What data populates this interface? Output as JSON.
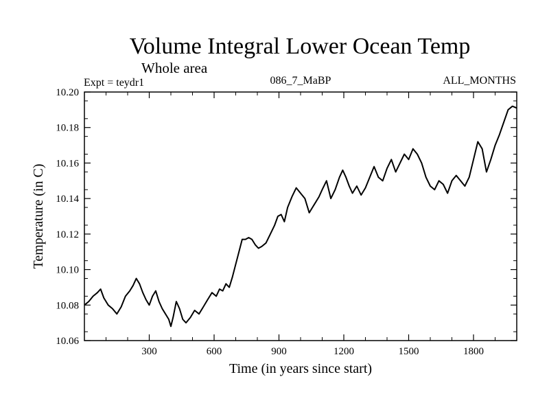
{
  "chart_data": {
    "type": "line",
    "title": "Volume Integral Lower Ocean Temp",
    "subtitle": "Whole area",
    "experiment": "Expt = teydr1",
    "run_label": "086_7_MaBP",
    "months_label": "ALL_MONTHS",
    "xlabel": "Time (in years since start)",
    "ylabel": "Temperature (in C)",
    "xlim": [
      0,
      2000
    ],
    "ylim": [
      10.06,
      10.2
    ],
    "x_ticks": [
      300,
      600,
      900,
      1200,
      1500,
      1800
    ],
    "y_ticks": [
      "10.06",
      "10.08",
      "10.10",
      "10.12",
      "10.14",
      "10.16",
      "10.18",
      "10.20"
    ],
    "grid": false,
    "series": [
      {
        "color": "#000000",
        "x": [
          0,
          20,
          40,
          60,
          75,
          90,
          110,
          130,
          150,
          170,
          190,
          210,
          225,
          240,
          255,
          270,
          285,
          300,
          315,
          330,
          345,
          360,
          375,
          390,
          400,
          410,
          425,
          440,
          455,
          470,
          490,
          510,
          530,
          550,
          570,
          590,
          610,
          625,
          640,
          655,
          670,
          685,
          700,
          715,
          730,
          745,
          760,
          775,
          790,
          805,
          820,
          840,
          860,
          880,
          895,
          910,
          925,
          940,
          960,
          980,
          1000,
          1020,
          1040,
          1055,
          1070,
          1085,
          1100,
          1120,
          1140,
          1160,
          1180,
          1195,
          1210,
          1225,
          1240,
          1260,
          1280,
          1300,
          1320,
          1340,
          1360,
          1380,
          1400,
          1420,
          1440,
          1460,
          1480,
          1500,
          1520,
          1540,
          1560,
          1580,
          1600,
          1620,
          1640,
          1660,
          1680,
          1700,
          1720,
          1740,
          1760,
          1780,
          1800,
          1820,
          1840,
          1860,
          1880,
          1900,
          1920,
          1940,
          1960,
          1980,
          2000
        ],
        "y": [
          10.08,
          10.082,
          10.085,
          10.087,
          10.089,
          10.084,
          10.08,
          10.078,
          10.075,
          10.079,
          10.085,
          10.088,
          10.091,
          10.095,
          10.092,
          10.087,
          10.083,
          10.08,
          10.085,
          10.088,
          10.082,
          10.078,
          10.075,
          10.072,
          10.068,
          10.073,
          10.082,
          10.078,
          10.072,
          10.07,
          10.073,
          10.077,
          10.075,
          10.079,
          10.083,
          10.087,
          10.085,
          10.089,
          10.088,
          10.092,
          10.09,
          10.096,
          10.103,
          10.11,
          10.117,
          10.117,
          10.118,
          10.117,
          10.114,
          10.112,
          10.113,
          10.115,
          10.12,
          10.125,
          10.13,
          10.131,
          10.127,
          10.135,
          10.141,
          10.146,
          10.143,
          10.14,
          10.132,
          10.135,
          10.138,
          10.141,
          10.145,
          10.15,
          10.14,
          10.145,
          10.152,
          10.156,
          10.152,
          10.147,
          10.143,
          10.147,
          10.142,
          10.146,
          10.152,
          10.158,
          10.152,
          10.15,
          10.157,
          10.162,
          10.155,
          10.16,
          10.165,
          10.162,
          10.168,
          10.165,
          10.16,
          10.152,
          10.147,
          10.145,
          10.15,
          10.148,
          10.143,
          10.15,
          10.153,
          10.15,
          10.147,
          10.152,
          10.162,
          10.172,
          10.168,
          10.155,
          10.162,
          10.17,
          10.176,
          10.183,
          10.19,
          10.192,
          10.191
        ]
      }
    ]
  }
}
